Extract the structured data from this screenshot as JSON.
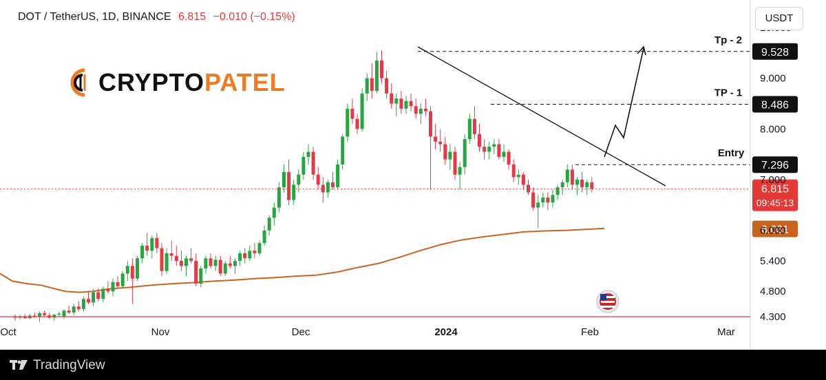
{
  "header": {
    "symbol": "DOT / TetherUS, 1D, BINANCE",
    "price": "6.815",
    "change": "−0.010 (−0.15%)"
  },
  "currency_button": "USDT",
  "logo": {
    "part1": "CRYPTO",
    "part2": "PATEL"
  },
  "footer": {
    "brand": "TradingView"
  },
  "colors": {
    "up": "#26a641",
    "down": "#e53945",
    "ma": "#c8641e",
    "price_line": "#e53935",
    "logo_accent": "#f07a23"
  },
  "chart_data": {
    "type": "candlestick",
    "ylim": [
      4.3,
      10.0
    ],
    "y_ticks": [
      "4.300",
      "4.800",
      "5.400",
      "6.000",
      "7.000",
      "8.000",
      "9.000",
      "10.000"
    ],
    "x_labels": [
      "Oct",
      "Nov",
      "Dec",
      "2024",
      "Feb",
      "Mar"
    ],
    "price_labels": [
      {
        "label": "Tp - 2",
        "value": 9.528,
        "text": "9.528"
      },
      {
        "label": "TP - 1",
        "value": 8.486,
        "text": "8.486"
      },
      {
        "label": "Entry",
        "value": 7.296,
        "text": "7.296"
      }
    ],
    "last_price": {
      "value": 6.815,
      "text": "6.815",
      "countdown": "09:45:13"
    },
    "moving_average_last": {
      "value": 6.031,
      "text": "6.031"
    },
    "candles": [
      [
        4.3,
        4.34,
        4.22,
        4.28
      ],
      [
        4.28,
        4.33,
        4.24,
        4.3
      ],
      [
        4.3,
        4.35,
        4.26,
        4.27
      ],
      [
        4.27,
        4.36,
        4.25,
        4.32
      ],
      [
        4.32,
        4.38,
        4.28,
        4.3
      ],
      [
        4.3,
        4.4,
        4.2,
        4.37
      ],
      [
        4.37,
        4.42,
        4.3,
        4.33
      ],
      [
        4.33,
        4.38,
        4.25,
        4.28
      ],
      [
        4.28,
        4.35,
        4.22,
        4.34
      ],
      [
        4.34,
        4.4,
        4.3,
        4.36
      ],
      [
        4.3,
        4.45,
        4.25,
        4.42
      ],
      [
        4.42,
        4.52,
        4.35,
        4.38
      ],
      [
        4.38,
        4.55,
        4.33,
        4.5
      ],
      [
        4.5,
        4.6,
        4.4,
        4.45
      ],
      [
        4.45,
        4.7,
        4.4,
        4.65
      ],
      [
        4.65,
        4.8,
        4.55,
        4.58
      ],
      [
        4.58,
        4.85,
        4.5,
        4.78
      ],
      [
        4.78,
        4.86,
        4.6,
        4.65
      ],
      [
        4.65,
        4.9,
        4.58,
        4.85
      ],
      [
        4.85,
        5.0,
        4.75,
        4.8
      ],
      [
        4.8,
        5.05,
        4.7,
        4.98
      ],
      [
        4.98,
        5.1,
        4.85,
        4.9
      ],
      [
        4.9,
        5.2,
        4.85,
        5.15
      ],
      [
        5.15,
        5.4,
        5.0,
        5.3
      ],
      [
        5.3,
        5.45,
        4.55,
        5.05
      ],
      [
        5.05,
        5.5,
        5.0,
        5.45
      ],
      [
        5.45,
        5.75,
        5.35,
        5.7
      ],
      [
        5.7,
        5.95,
        5.5,
        5.6
      ],
      [
        5.6,
        5.9,
        5.45,
        5.85
      ],
      [
        5.85,
        5.95,
        5.55,
        5.65
      ],
      [
        5.65,
        5.75,
        5.1,
        5.2
      ],
      [
        5.2,
        5.65,
        5.15,
        5.55
      ],
      [
        5.55,
        5.8,
        5.4,
        5.5
      ],
      [
        5.5,
        5.7,
        5.3,
        5.4
      ],
      [
        5.4,
        5.6,
        5.2,
        5.3
      ],
      [
        5.3,
        5.5,
        5.1,
        5.45
      ],
      [
        5.45,
        5.65,
        5.35,
        5.4
      ],
      [
        5.4,
        5.55,
        4.9,
        4.95
      ],
      [
        4.95,
        5.3,
        4.88,
        5.25
      ],
      [
        5.25,
        5.5,
        5.15,
        5.45
      ],
      [
        5.45,
        5.55,
        5.25,
        5.3
      ],
      [
        5.3,
        5.5,
        5.2,
        5.42
      ],
      [
        5.42,
        5.5,
        5.1,
        5.15
      ],
      [
        5.15,
        5.4,
        5.1,
        5.35
      ],
      [
        5.35,
        5.5,
        5.25,
        5.3
      ],
      [
        5.3,
        5.45,
        5.15,
        5.4
      ],
      [
        5.4,
        5.6,
        5.3,
        5.55
      ],
      [
        5.55,
        5.65,
        5.35,
        5.45
      ],
      [
        5.45,
        5.7,
        5.4,
        5.6
      ],
      [
        5.6,
        5.75,
        5.45,
        5.55
      ],
      [
        5.55,
        5.8,
        5.5,
        5.75
      ],
      [
        5.75,
        6.1,
        5.7,
        6.0
      ],
      [
        6.0,
        6.3,
        5.9,
        6.25
      ],
      [
        6.25,
        6.55,
        6.1,
        6.45
      ],
      [
        6.45,
        6.95,
        6.35,
        6.85
      ],
      [
        6.85,
        7.3,
        6.75,
        7.15
      ],
      [
        7.15,
        7.4,
        6.5,
        6.6
      ],
      [
        6.6,
        7.0,
        6.5,
        6.9
      ],
      [
        6.9,
        7.2,
        6.75,
        7.1
      ],
      [
        7.1,
        7.55,
        7.0,
        7.45
      ],
      [
        7.45,
        7.7,
        7.3,
        7.55
      ],
      [
        7.55,
        7.65,
        7.0,
        7.1
      ],
      [
        7.1,
        7.25,
        6.8,
        6.9
      ],
      [
        6.9,
        7.05,
        6.55,
        6.75
      ],
      [
        6.75,
        7.0,
        6.65,
        6.95
      ],
      [
        6.95,
        7.15,
        6.8,
        6.85
      ],
      [
        6.85,
        7.4,
        6.8,
        7.3
      ],
      [
        7.3,
        7.9,
        7.2,
        7.85
      ],
      [
        7.85,
        8.5,
        7.75,
        8.4
      ],
      [
        8.4,
        8.6,
        8.1,
        8.2
      ],
      [
        8.2,
        8.3,
        7.9,
        8.0
      ],
      [
        8.0,
        8.8,
        7.95,
        8.7
      ],
      [
        8.7,
        9.1,
        8.55,
        9.0
      ],
      [
        9.0,
        9.3,
        8.6,
        8.75
      ],
      [
        8.75,
        9.52,
        8.7,
        9.35
      ],
      [
        9.35,
        9.55,
        8.9,
        9.0
      ],
      [
        9.0,
        9.15,
        8.6,
        8.7
      ],
      [
        8.7,
        8.9,
        8.4,
        8.5
      ],
      [
        8.5,
        8.7,
        8.25,
        8.6
      ],
      [
        8.6,
        8.75,
        8.3,
        8.4
      ],
      [
        8.4,
        8.65,
        8.3,
        8.55
      ],
      [
        8.55,
        8.7,
        8.35,
        8.45
      ],
      [
        8.45,
        8.6,
        8.2,
        8.3
      ],
      [
        8.3,
        8.5,
        8.1,
        8.4
      ],
      [
        8.4,
        8.6,
        8.25,
        8.35
      ],
      [
        8.35,
        8.45,
        6.8,
        7.85
      ],
      [
        7.85,
        8.1,
        7.6,
        7.75
      ],
      [
        7.75,
        8.0,
        7.55,
        7.7
      ],
      [
        7.7,
        7.85,
        7.3,
        7.4
      ],
      [
        7.4,
        7.7,
        7.2,
        7.55
      ],
      [
        7.55,
        7.65,
        7.0,
        7.1
      ],
      [
        7.1,
        7.35,
        6.8,
        7.25
      ],
      [
        7.25,
        7.9,
        7.1,
        7.8
      ],
      [
        7.8,
        8.3,
        7.7,
        8.2
      ],
      [
        8.2,
        8.45,
        7.8,
        7.9
      ],
      [
        7.9,
        8.1,
        7.55,
        7.65
      ],
      [
        7.65,
        7.8,
        7.4,
        7.55
      ],
      [
        7.55,
        7.75,
        7.4,
        7.65
      ],
      [
        7.65,
        7.8,
        7.5,
        7.7
      ],
      [
        7.7,
        7.8,
        7.4,
        7.45
      ],
      [
        7.45,
        7.7,
        7.35,
        7.55
      ],
      [
        7.55,
        7.6,
        7.2,
        7.3
      ],
      [
        7.3,
        7.4,
        6.95,
        7.05
      ],
      [
        7.05,
        7.2,
        6.9,
        7.1
      ],
      [
        7.1,
        7.15,
        6.8,
        6.9
      ],
      [
        6.9,
        7.0,
        6.7,
        6.75
      ],
      [
        6.75,
        6.85,
        6.4,
        6.45
      ],
      [
        6.45,
        6.7,
        6.05,
        6.55
      ],
      [
        6.55,
        6.75,
        6.45,
        6.65
      ],
      [
        6.65,
        6.75,
        6.4,
        6.55
      ],
      [
        6.55,
        6.8,
        6.45,
        6.7
      ],
      [
        6.7,
        6.9,
        6.6,
        6.85
      ],
      [
        6.85,
        7.0,
        6.7,
        6.95
      ],
      [
        6.95,
        7.3,
        6.85,
        7.2
      ],
      [
        7.2,
        7.3,
        6.8,
        6.9
      ],
      [
        6.9,
        7.05,
        6.7,
        7.0
      ],
      [
        7.0,
        7.15,
        6.75,
        6.85
      ],
      [
        6.85,
        7.0,
        6.7,
        6.95
      ],
      [
        6.95,
        7.05,
        6.75,
        6.82
      ]
    ],
    "moving_average": [
      [
        0,
        5.15
      ],
      [
        18,
        5.0
      ],
      [
        40,
        4.95
      ],
      [
        60,
        4.92
      ],
      [
        80,
        4.85
      ],
      [
        95,
        4.8
      ],
      [
        115,
        4.78
      ],
      [
        135,
        4.8
      ],
      [
        160,
        4.85
      ],
      [
        190,
        4.88
      ],
      [
        220,
        4.92
      ],
      [
        250,
        4.95
      ],
      [
        280,
        4.97
      ],
      [
        310,
        5.0
      ],
      [
        340,
        5.02
      ],
      [
        370,
        5.05
      ],
      [
        400,
        5.07
      ],
      [
        430,
        5.1
      ],
      [
        460,
        5.12
      ],
      [
        490,
        5.18
      ],
      [
        520,
        5.27
      ],
      [
        550,
        5.35
      ],
      [
        580,
        5.47
      ],
      [
        610,
        5.6
      ],
      [
        640,
        5.72
      ],
      [
        670,
        5.81
      ],
      [
        700,
        5.87
      ],
      [
        730,
        5.92
      ],
      [
        760,
        5.97
      ],
      [
        790,
        5.99
      ],
      [
        820,
        6.0
      ],
      [
        850,
        6.02
      ],
      [
        878,
        6.04
      ]
    ]
  }
}
